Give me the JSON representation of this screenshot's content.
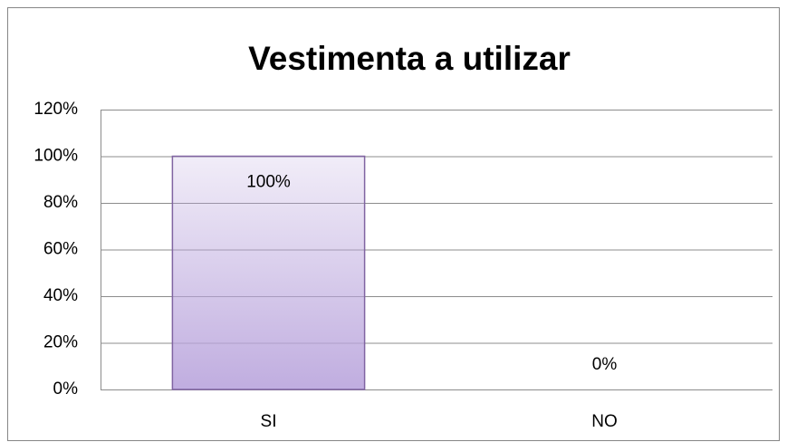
{
  "chart_data": {
    "type": "bar",
    "title": "Vestimenta a utilizar",
    "categories": [
      "SI",
      "NO"
    ],
    "values": [
      100,
      0
    ],
    "value_labels": [
      "100%",
      "0%"
    ],
    "color": "#b9a4dc",
    "ylim": [
      0,
      120
    ],
    "yticks": [
      {
        "value": 0,
        "label": "0%"
      },
      {
        "value": 20,
        "label": "20%"
      },
      {
        "value": 40,
        "label": "40%"
      },
      {
        "value": 60,
        "label": "60%"
      },
      {
        "value": 80,
        "label": "80%"
      },
      {
        "value": 100,
        "label": "100%"
      },
      {
        "value": 120,
        "label": "120%"
      }
    ],
    "grid": true
  }
}
